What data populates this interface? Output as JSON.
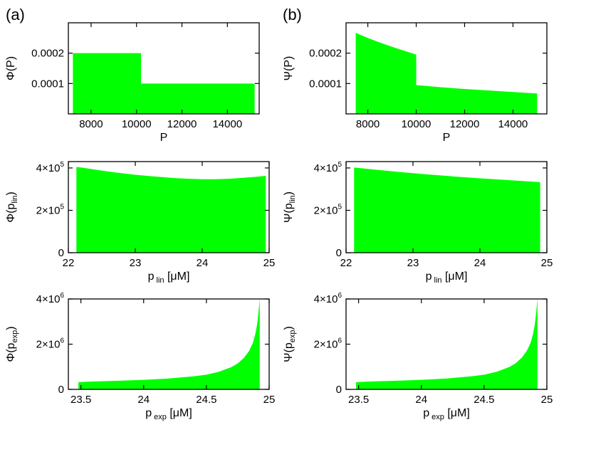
{
  "panel_labels": {
    "a": "(a)",
    "b": "(b)"
  },
  "colors": {
    "fill": "#00ff00",
    "axis": "#000000",
    "background": "#ffffff"
  },
  "chart_data": [
    {
      "id": "a1",
      "type": "area",
      "ylabel": "Φ(P)",
      "ylabel_main": "Φ(P)",
      "ylabel_sub": "",
      "xlabel": "P",
      "xlabel_main": "P",
      "xlabel_sub": "",
      "xlabel_unit": "",
      "xlim": [
        7000,
        15400
      ],
      "ylim": [
        0,
        0.0003
      ],
      "x_ticks": [
        {
          "v": 8000,
          "label": "8000"
        },
        {
          "v": 10000,
          "label": "10000"
        },
        {
          "v": 12000,
          "label": "12000"
        },
        {
          "v": 14000,
          "label": "14000"
        }
      ],
      "y_ticks": [
        {
          "v": 0.0001,
          "label": "0.0001"
        },
        {
          "v": 0.0002,
          "label": "0.0002"
        }
      ],
      "x": [
        7200,
        10200,
        10200,
        15200
      ],
      "y": [
        0.0002,
        0.0002,
        0.0001,
        0.0001
      ]
    },
    {
      "id": "b1",
      "type": "area",
      "ylabel": "Ψ(P)",
      "ylabel_main": "Ψ(P)",
      "ylabel_sub": "",
      "xlabel": "P",
      "xlabel_main": "P",
      "xlabel_sub": "",
      "xlabel_unit": "",
      "xlim": [
        7100,
        15400
      ],
      "ylim": [
        0,
        0.0003
      ],
      "x_ticks": [
        {
          "v": 8000,
          "label": "8000"
        },
        {
          "v": 10000,
          "label": "10000"
        },
        {
          "v": 12000,
          "label": "12000"
        },
        {
          "v": 14000,
          "label": "14000"
        }
      ],
      "y_ticks": [
        {
          "v": 0.0001,
          "label": "0.0001"
        },
        {
          "v": 0.0002,
          "label": "0.0002"
        }
      ],
      "x": [
        7500,
        8000,
        8500,
        9000,
        9500,
        10000,
        10000,
        11000,
        12000,
        13000,
        14000,
        15000
      ],
      "y": [
        0.000267,
        0.00025,
        0.000235,
        0.000221,
        0.000208,
        0.000195,
        9.5e-05,
        8.8e-05,
        8.2e-05,
        7.7e-05,
        7.2e-05,
        6.7e-05
      ]
    },
    {
      "id": "a2",
      "type": "area",
      "ylabel": "Φ(p lin)",
      "ylabel_main": "Φ(p",
      "ylabel_sub": "lin",
      "xlabel": "p lin [μM]",
      "xlabel_main": "p",
      "xlabel_sub": "lin",
      "xlabel_unit": "[μM]",
      "xlim": [
        22,
        25
      ],
      "ylim": [
        0,
        430000
      ],
      "x_ticks": [
        {
          "v": 22,
          "label": "22"
        },
        {
          "v": 23,
          "label": "23"
        },
        {
          "v": 24,
          "label": "24"
        },
        {
          "v": 25,
          "label": "25"
        }
      ],
      "y_ticks": [
        {
          "v": 0,
          "label": "0",
          "exp": ""
        },
        {
          "v": 200000,
          "label": "2×10",
          "exp": "5"
        },
        {
          "v": 400000,
          "label": "4×10",
          "exp": "5"
        }
      ],
      "x": [
        22.12,
        22.2,
        22.4,
        22.6,
        22.8,
        23.0,
        23.2,
        23.4,
        23.6,
        23.8,
        24.0,
        24.2,
        24.4,
        24.6,
        24.8,
        24.95
      ],
      "y": [
        405000,
        402000,
        392000,
        383000,
        375000,
        368000,
        362000,
        357000,
        352000,
        349000,
        347000,
        347000,
        349000,
        353000,
        358000,
        363000
      ]
    },
    {
      "id": "b2",
      "type": "area",
      "ylabel": "Ψ(p lin)",
      "ylabel_main": "Ψ(p",
      "ylabel_sub": "lin",
      "xlabel": "p lin [μM]",
      "xlabel_main": "p",
      "xlabel_sub": "lin",
      "xlabel_unit": "[μM]",
      "xlim": [
        22,
        25
      ],
      "ylim": [
        0,
        430000
      ],
      "x_ticks": [
        {
          "v": 22,
          "label": "22"
        },
        {
          "v": 23,
          "label": "23"
        },
        {
          "v": 24,
          "label": "24"
        },
        {
          "v": 25,
          "label": "25"
        }
      ],
      "y_ticks": [
        {
          "v": 0,
          "label": "0",
          "exp": ""
        },
        {
          "v": 200000,
          "label": "2×10",
          "exp": "5"
        },
        {
          "v": 400000,
          "label": "4×10",
          "exp": "5"
        }
      ],
      "x": [
        22.12,
        22.4,
        22.8,
        23.2,
        23.6,
        24.0,
        24.4,
        24.9
      ],
      "y": [
        402000,
        393000,
        381000,
        370000,
        360000,
        351000,
        343000,
        333000
      ]
    },
    {
      "id": "a3",
      "type": "area",
      "ylabel": "Φ(p exp)",
      "ylabel_main": "Φ(p",
      "ylabel_sub": "exp",
      "xlabel": "p exp [μM]",
      "xlabel_main": "p",
      "xlabel_sub": "exp",
      "xlabel_unit": "[μM]",
      "xlim": [
        23.4,
        25
      ],
      "ylim": [
        0,
        4000000
      ],
      "x_ticks": [
        {
          "v": 23.5,
          "label": "23.5"
        },
        {
          "v": 24,
          "label": "24"
        },
        {
          "v": 24.5,
          "label": "24.5"
        },
        {
          "v": 25,
          "label": "25"
        }
      ],
      "y_ticks": [
        {
          "v": 0,
          "label": "0",
          "exp": ""
        },
        {
          "v": 2000000,
          "label": "2×10",
          "exp": "6"
        },
        {
          "v": 4000000,
          "label": "4×10",
          "exp": "6"
        }
      ],
      "x": [
        23.48,
        23.6,
        23.8,
        24.0,
        24.2,
        24.4,
        24.5,
        24.6,
        24.7,
        24.75,
        24.8,
        24.84,
        24.87,
        24.89,
        24.905,
        24.915,
        24.925
      ],
      "y": [
        320000,
        350000,
        380000,
        420000,
        480000,
        580000,
        650000,
        780000,
        990000,
        1150000,
        1400000,
        1700000,
        2050000,
        2450000,
        2900000,
        3400000,
        4000000
      ]
    },
    {
      "id": "b3",
      "type": "area",
      "ylabel": "Ψ(p exp)",
      "ylabel_main": "Ψ(p",
      "ylabel_sub": "exp",
      "xlabel": "p exp [μM]",
      "xlabel_main": "p",
      "xlabel_sub": "exp",
      "xlabel_unit": "[μM]",
      "xlim": [
        23.4,
        25
      ],
      "ylim": [
        0,
        4000000
      ],
      "x_ticks": [
        {
          "v": 23.5,
          "label": "23.5"
        },
        {
          "v": 24,
          "label": "24"
        },
        {
          "v": 24.5,
          "label": "24.5"
        },
        {
          "v": 25,
          "label": "25"
        }
      ],
      "y_ticks": [
        {
          "v": 0,
          "label": "0",
          "exp": ""
        },
        {
          "v": 2000000,
          "label": "2×10",
          "exp": "6"
        },
        {
          "v": 4000000,
          "label": "4×10",
          "exp": "6"
        }
      ],
      "x": [
        23.48,
        23.6,
        23.8,
        24.0,
        24.2,
        24.4,
        24.5,
        24.6,
        24.7,
        24.75,
        24.8,
        24.84,
        24.87,
        24.89,
        24.905,
        24.915,
        24.925
      ],
      "y": [
        320000,
        350000,
        380000,
        420000,
        480000,
        580000,
        650000,
        780000,
        990000,
        1150000,
        1400000,
        1700000,
        2050000,
        2450000,
        2900000,
        3400000,
        4000000
      ]
    }
  ]
}
